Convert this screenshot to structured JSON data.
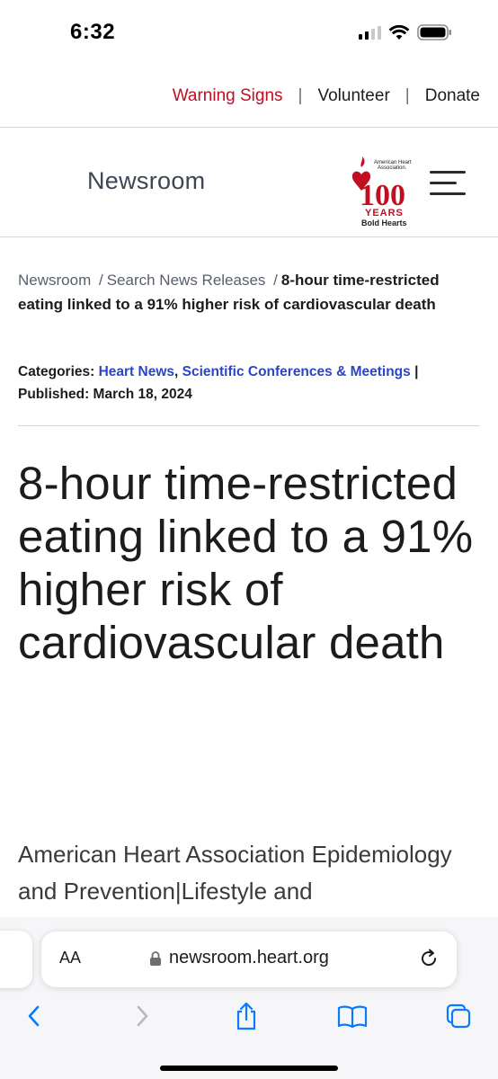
{
  "status_bar": {
    "time": "6:32"
  },
  "utility_nav": {
    "warning_signs": "Warning Signs",
    "separator": "|",
    "volunteer": "Volunteer",
    "donate": "Donate"
  },
  "header": {
    "title": "Newsroom",
    "logo": {
      "org_line1": "American Heart",
      "org_line2": "Association.",
      "number": "100",
      "years": "YEARS",
      "tagline": "Bold Hearts"
    }
  },
  "breadcrumb": {
    "items": [
      "Newsroom",
      "Search News Releases"
    ],
    "separator": "/",
    "current": "8-hour time-restricted eating linked to a 91% higher risk of cardiovascular death"
  },
  "meta": {
    "categories_label": "Categories:",
    "categories": [
      "Heart News",
      "Scientific Conferences & Meetings"
    ],
    "pipe": "|",
    "published_label": "Published:",
    "published_date": "March 18, 2024"
  },
  "article": {
    "headline": "8-hour time-restricted eating linked to a 91% higher risk of cardiovascular death",
    "subtitle": "American Heart Association Epidemiology and Prevention|Lifestyle and"
  },
  "browser": {
    "aa_label": "AA",
    "url": "newsroom.heart.org"
  },
  "colors": {
    "brand_red": "#c10e21",
    "link_blue": "#2846c6",
    "ios_blue": "#0a7aff"
  }
}
